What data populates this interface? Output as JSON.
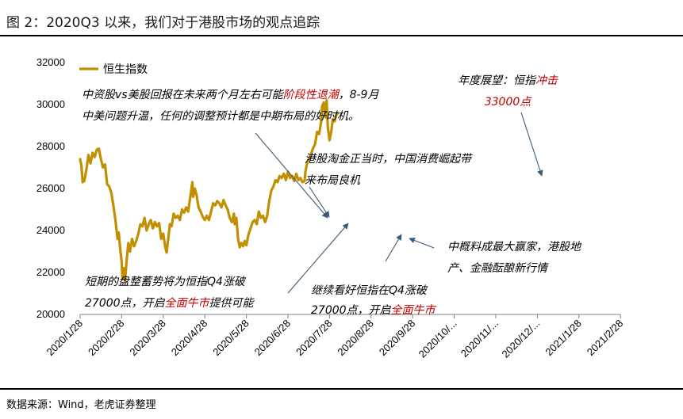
{
  "title": "图 2：2020Q3 以来，我们对于港股市场的观点追踪",
  "footer": "数据来源：Wind，老虎证券整理",
  "colors": {
    "line": "#C09000",
    "annotation_red": "#C00000",
    "arrow": "#3B5A7A"
  },
  "chart_data": {
    "type": "line",
    "title": "",
    "xlabel": "",
    "ylabel": "",
    "ylim": [
      20000,
      32000
    ],
    "yticks": [
      "32000",
      "30000",
      "28000",
      "26000",
      "24000",
      "22000",
      "20000"
    ],
    "x_tick_labels": [
      "2020/1/28",
      "2020/2/28",
      "2020/3/28",
      "2020/4/28",
      "2020/5/28",
      "2020/6/28",
      "2020/7/28",
      "2020/8/28",
      "2020/9/28",
      "2020/10/...",
      "2020/11/...",
      "2020/12/...",
      "2021/1/28",
      "2021/2/28"
    ],
    "legend": [
      "恒生指数"
    ],
    "series": [
      {
        "name": "恒生指数",
        "points": [
          [
            0,
            27400
          ],
          [
            0.03,
            27100
          ],
          [
            0.06,
            26300
          ],
          [
            0.1,
            26350
          ],
          [
            0.15,
            26900
          ],
          [
            0.2,
            27600
          ],
          [
            0.25,
            27200
          ],
          [
            0.3,
            27700
          ],
          [
            0.35,
            27500
          ],
          [
            0.4,
            27850
          ],
          [
            0.45,
            27900
          ],
          [
            0.5,
            27400
          ],
          [
            0.55,
            27000
          ],
          [
            0.6,
            27150
          ],
          [
            0.65,
            26200
          ],
          [
            0.7,
            26100
          ],
          [
            0.75,
            25800
          ],
          [
            0.8,
            25200
          ],
          [
            0.85,
            24500
          ],
          [
            0.9,
            23600
          ],
          [
            0.93,
            23900
          ],
          [
            0.96,
            23200
          ],
          [
            1.0,
            22500
          ],
          [
            1.02,
            21700
          ],
          [
            1.05,
            22200
          ],
          [
            1.08,
            21600
          ],
          [
            1.12,
            22600
          ],
          [
            1.16,
            23400
          ],
          [
            1.2,
            23000
          ],
          [
            1.25,
            23600
          ],
          [
            1.3,
            23250
          ],
          [
            1.35,
            23500
          ],
          [
            1.4,
            23850
          ],
          [
            1.45,
            24300
          ],
          [
            1.5,
            24200
          ],
          [
            1.55,
            24600
          ],
          [
            1.6,
            24000
          ],
          [
            1.65,
            24300
          ],
          [
            1.7,
            24500
          ],
          [
            1.75,
            24100
          ],
          [
            1.8,
            24400
          ],
          [
            1.85,
            24200
          ],
          [
            1.9,
            24350
          ],
          [
            1.95,
            23600
          ],
          [
            2.0,
            23850
          ],
          [
            2.05,
            23200
          ],
          [
            2.08,
            22950
          ],
          [
            2.12,
            23600
          ],
          [
            2.16,
            24300
          ],
          [
            2.2,
            24200
          ],
          [
            2.25,
            24800
          ],
          [
            2.3,
            24600
          ],
          [
            2.35,
            24700
          ],
          [
            2.4,
            24500
          ],
          [
            2.45,
            25000
          ],
          [
            2.5,
            24850
          ],
          [
            2.55,
            25100
          ],
          [
            2.6,
            24900
          ],
          [
            2.65,
            25600
          ],
          [
            2.7,
            26300
          ],
          [
            2.72,
            25600
          ],
          [
            2.76,
            26000
          ],
          [
            2.8,
            25700
          ],
          [
            2.85,
            25100
          ],
          [
            2.9,
            24900
          ],
          [
            2.95,
            24650
          ],
          [
            3.0,
            24500
          ],
          [
            3.05,
            24700
          ],
          [
            3.1,
            24500
          ],
          [
            3.15,
            24900
          ],
          [
            3.2,
            25300
          ],
          [
            3.25,
            25200
          ],
          [
            3.3,
            25400
          ],
          [
            3.35,
            25300
          ],
          [
            3.4,
            25100
          ],
          [
            3.45,
            25450
          ],
          [
            3.5,
            25200
          ],
          [
            3.55,
            25000
          ],
          [
            3.6,
            24600
          ],
          [
            3.65,
            24400
          ],
          [
            3.7,
            24800
          ],
          [
            3.72,
            24300
          ],
          [
            3.76,
            24600
          ],
          [
            3.8,
            23600
          ],
          [
            3.84,
            23200
          ],
          [
            3.88,
            23400
          ],
          [
            3.92,
            23250
          ],
          [
            3.96,
            23500
          ],
          [
            4.0,
            23300
          ],
          [
            4.05,
            23800
          ],
          [
            4.1,
            24100
          ],
          [
            4.15,
            24400
          ],
          [
            4.2,
            24500
          ],
          [
            4.25,
            24300
          ],
          [
            4.3,
            24900
          ],
          [
            4.35,
            24600
          ],
          [
            4.4,
            24700
          ],
          [
            4.45,
            24400
          ],
          [
            4.5,
            24700
          ],
          [
            4.55,
            25400
          ],
          [
            4.6,
            25900
          ],
          [
            4.65,
            26100
          ],
          [
            4.7,
            26400
          ],
          [
            4.75,
            26300
          ],
          [
            4.8,
            26600
          ],
          [
            4.85,
            26500
          ],
          [
            4.9,
            26700
          ],
          [
            4.95,
            26400
          ],
          [
            5.0,
            26800
          ],
          [
            5.05,
            26500
          ],
          [
            5.1,
            26600
          ],
          [
            5.15,
            26350
          ],
          [
            5.2,
            26700
          ],
          [
            5.25,
            26400
          ],
          [
            5.3,
            26500
          ],
          [
            5.35,
            26300
          ],
          [
            5.4,
            26350
          ],
          [
            5.42,
            26800
          ],
          [
            5.46,
            27200
          ],
          [
            5.5,
            27400
          ],
          [
            5.55,
            27600
          ],
          [
            5.6,
            27900
          ],
          [
            5.65,
            28100
          ],
          [
            5.7,
            28700
          ],
          [
            5.75,
            28600
          ],
          [
            5.8,
            29200
          ],
          [
            5.82,
            29900
          ],
          [
            5.86,
            30100
          ],
          [
            5.9,
            29400
          ],
          [
            5.93,
            30200
          ],
          [
            5.96,
            28900
          ],
          [
            6.0,
            28300
          ],
          [
            6.04,
            28700
          ],
          [
            6.08,
            29300
          ],
          [
            6.12,
            29200
          ],
          [
            6.16,
            29500
          ],
          [
            6.2,
            29600
          ]
        ]
      }
    ],
    "annotations": [
      {
        "lines": [
          [
            {
              "t": "中资股vs美股回报在未来两个月左右可能"
            },
            {
              "t": "阶段性退潮",
              "red": true
            },
            {
              "t": "，8-9月"
            }
          ],
          [
            {
              "t": "中美问题升温，任何的调整预计都是中期布局的好时机。"
            }
          ]
        ]
      },
      {
        "lines": [
          [
            {
              "t": "港股淘金正当时，中国消费崛起带"
            }
          ],
          [
            {
              "t": "来布局良机"
            }
          ]
        ]
      },
      {
        "lines": [
          [
            {
              "t": "年度展望：恒指"
            },
            {
              "t": "冲击",
              "red": true
            }
          ],
          [
            {
              "t": "33000点",
              "red": true
            }
          ]
        ]
      },
      {
        "lines": [
          [
            {
              "t": "中概料成最大赢家，港股地"
            }
          ],
          [
            {
              "t": "产、金融酝酿新行情"
            }
          ]
        ]
      },
      {
        "lines": [
          [
            {
              "t": "短期的盘整蓄势将为恒指Q4涨破"
            }
          ],
          [
            {
              "t": "27000点，开启"
            },
            {
              "t": "全面牛市",
              "red": true
            },
            {
              "t": "提供可能"
            }
          ]
        ]
      },
      {
        "lines": [
          [
            {
              "t": "继续看好恒指在Q4涨破"
            }
          ],
          [
            {
              "t": "27000点，开启"
            },
            {
              "t": "全面牛市",
              "red": true
            }
          ]
        ]
      }
    ]
  }
}
